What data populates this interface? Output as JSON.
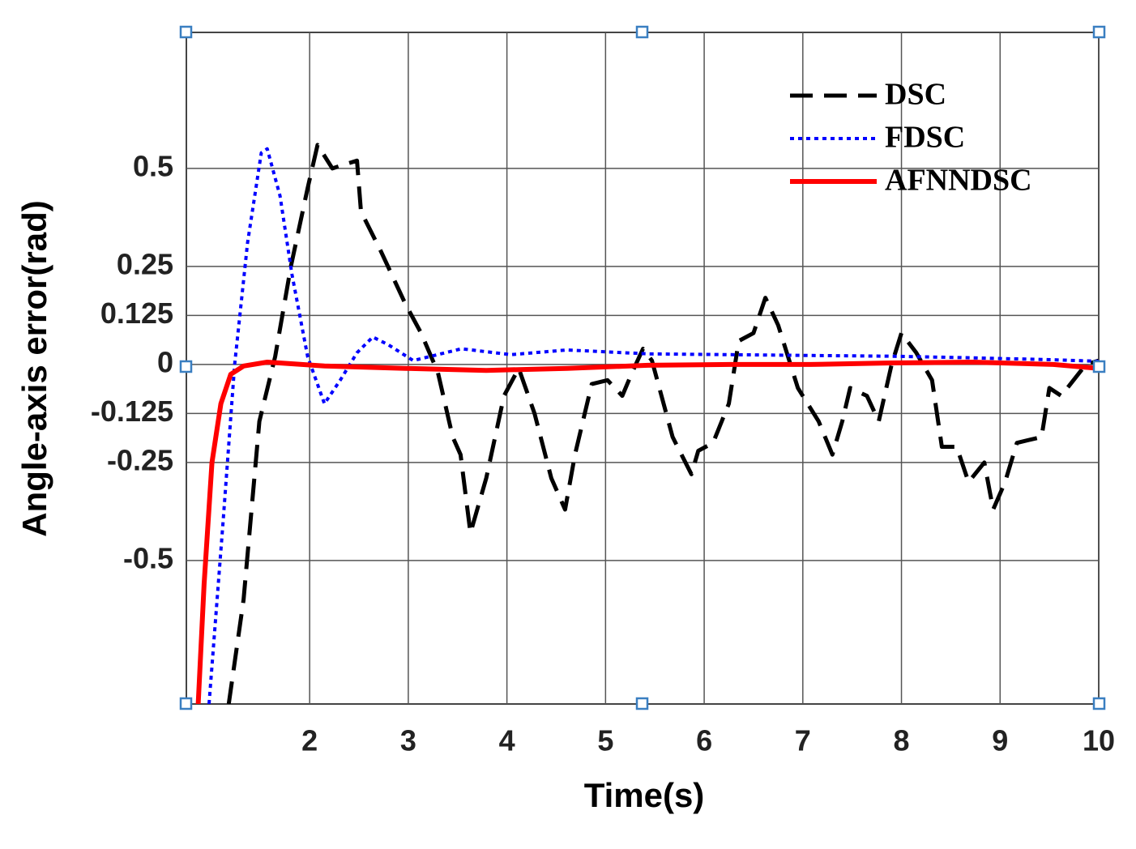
{
  "chart_data": {
    "type": "line",
    "xlabel": "Time(s)",
    "ylabel": "Angle-axis error(rad)",
    "xlim": [
      0.75,
      10
    ],
    "xticks": [
      2,
      3,
      4,
      5,
      6,
      7,
      8,
      9,
      10
    ],
    "ylim": [
      -0.866,
      0.847
    ],
    "yticks": [
      -0.5,
      -0.25,
      -0.125,
      0,
      0.125,
      0.25,
      0.5
    ],
    "grid": true,
    "legend": "upper right",
    "series": [
      {
        "name": "DSC",
        "color": "#000000",
        "style": "dashed",
        "x": [
          1.18,
          1.33,
          1.49,
          1.65,
          1.81,
          1.98,
          2.08,
          2.23,
          2.35,
          2.48,
          2.52,
          2.72,
          2.97,
          3.13,
          3.3,
          3.45,
          3.53,
          3.63,
          3.79,
          3.97,
          4.12,
          4.28,
          4.45,
          4.59,
          4.69,
          4.86,
          5.02,
          5.17,
          5.27,
          5.38,
          5.47,
          5.68,
          5.87,
          5.94,
          6.09,
          6.25,
          6.35,
          6.5,
          6.62,
          6.75,
          6.95,
          7.16,
          7.3,
          7.4,
          7.48,
          7.65,
          7.77,
          7.9,
          8.0,
          8.15,
          8.31,
          8.41,
          8.56,
          8.68,
          8.84,
          8.93,
          9.05,
          9.17,
          9.42,
          9.5,
          9.62,
          9.87,
          10
        ],
        "values": [
          -0.866,
          -0.6,
          -0.145,
          0.02,
          0.25,
          0.45,
          0.56,
          0.5,
          0.51,
          0.52,
          0.39,
          0.29,
          0.155,
          0.08,
          -0.02,
          -0.185,
          -0.23,
          -0.43,
          -0.29,
          -0.08,
          -0.01,
          -0.125,
          -0.29,
          -0.37,
          -0.23,
          -0.05,
          -0.04,
          -0.08,
          -0.02,
          0.04,
          0.01,
          -0.185,
          -0.28,
          -0.22,
          -0.2,
          -0.1,
          0.06,
          0.08,
          0.17,
          0.1,
          -0.06,
          -0.145,
          -0.23,
          -0.145,
          -0.06,
          -0.08,
          -0.145,
          0,
          0.08,
          0.03,
          -0.04,
          -0.21,
          -0.21,
          -0.3,
          -0.25,
          -0.37,
          -0.3,
          -0.2,
          -0.185,
          -0.06,
          -0.08,
          0,
          0.01
        ]
      },
      {
        "name": "FDSC",
        "color": "#0000ff",
        "style": "dotted",
        "x": [
          0.98,
          1.12,
          1.24,
          1.37,
          1.51,
          1.57,
          1.7,
          1.82,
          1.98,
          2.15,
          2.31,
          2.48,
          2.64,
          2.8,
          3.05,
          3.54,
          4.04,
          4.61,
          5.43,
          6.26,
          7.08,
          7.9,
          8.72,
          9.54,
          10
        ],
        "values": [
          -0.866,
          -0.41,
          0,
          0.31,
          0.54,
          0.55,
          0.43,
          0.23,
          0.02,
          -0.1,
          -0.04,
          0.03,
          0.07,
          0.05,
          0.01,
          0.04,
          0.025,
          0.037,
          0.027,
          0.025,
          0.023,
          0.021,
          0.017,
          0.012,
          0.008
        ]
      },
      {
        "name": "AFNNDSC",
        "color": "#ff0000",
        "style": "solid",
        "x": [
          0.87,
          0.93,
          1.01,
          1.1,
          1.2,
          1.33,
          1.57,
          2.15,
          2.97,
          3.79,
          4.61,
          5.43,
          6.26,
          7.08,
          7.9,
          8.72,
          9.54,
          10
        ],
        "values": [
          -0.866,
          -0.56,
          -0.25,
          -0.1,
          -0.025,
          -0.004,
          0.006,
          -0.004,
          -0.01,
          -0.015,
          -0.01,
          -0.002,
          0,
          0,
          0.004,
          0.006,
          0,
          -0.01
        ]
      }
    ]
  }
}
